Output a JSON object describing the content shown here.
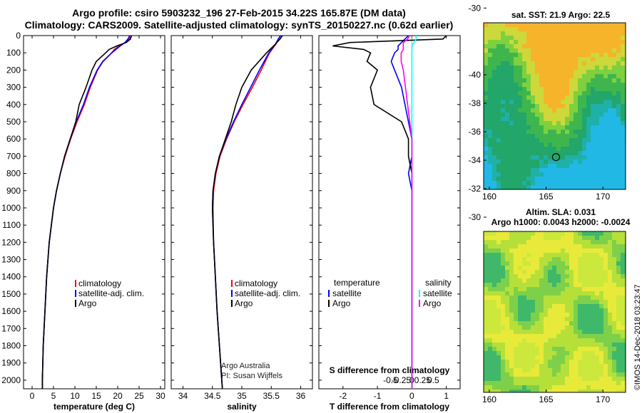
{
  "header": {
    "title_line1": "Argo profile: csiro 5903232_196 27-Feb-2015 34.22S 165.87E (DM data)",
    "title_line2": "Climatology: CARS2009. Satellite-adjusted climatology: synTS_20150227.nc (0.62d earlier)"
  },
  "colors": {
    "climatology": "#ff0000",
    "satellite": "#0000ff",
    "argo": "#000000",
    "sal_satellite": "#00ffff",
    "sal_argo": "#ff00ff"
  },
  "depth_axis": {
    "ticks": [
      "0",
      "100",
      "200",
      "300",
      "400",
      "500",
      "600",
      "700",
      "800",
      "900",
      "1000",
      "1100",
      "1200",
      "1300",
      "1400",
      "1500",
      "1600",
      "1700",
      "1800",
      "1900",
      "2000"
    ],
    "ylim": [
      2050,
      0
    ]
  },
  "chart_data": [
    {
      "type": "line",
      "id": "temperature",
      "xlabel": "temperature (deg C)",
      "xlim": [
        -2,
        31
      ],
      "xticks": [
        "0",
        "5",
        "10",
        "15",
        "20",
        "25",
        "30"
      ],
      "legend": {
        "climatology": "climatology",
        "satellite": "satellite-adj. clim.",
        "argo": "Argo"
      },
      "depth": [
        0,
        20,
        40,
        60,
        80,
        100,
        150,
        200,
        300,
        400,
        500,
        600,
        700,
        800,
        900,
        1000,
        1200,
        1400,
        1600,
        1800,
        2000,
        2050
      ],
      "series": [
        {
          "name": "climatology",
          "color": "#ff0000",
          "values": [
            23.0,
            22.6,
            21.8,
            20.3,
            19.2,
            18.6,
            16.6,
            15.3,
            13.6,
            12.2,
            10.5,
            9.0,
            7.7,
            6.6,
            5.7,
            5.0,
            4.0,
            3.4,
            3.0,
            2.6,
            2.4,
            2.4
          ]
        },
        {
          "name": "satellite-adj. clim.",
          "color": "#0000ff",
          "values": [
            22.8,
            22.4,
            21.7,
            20.6,
            19.6,
            18.6,
            16.5,
            15.2,
            13.4,
            12.0,
            10.3,
            8.9,
            7.6,
            6.6,
            5.7,
            5.0,
            4.0,
            3.4,
            3.0,
            2.6,
            2.4,
            2.4
          ]
        },
        {
          "name": "Argo",
          "color": "#000000",
          "values": [
            23.2,
            23.0,
            22.0,
            19.8,
            18.0,
            17.2,
            15.0,
            14.0,
            12.6,
            11.0,
            10.2,
            8.9,
            7.6,
            6.6,
            5.7,
            5.0,
            4.0,
            3.4,
            3.0,
            2.6,
            2.4,
            2.4
          ]
        }
      ]
    },
    {
      "type": "line",
      "id": "salinity",
      "xlabel": "salinity",
      "xlim": [
        33.8,
        36.2
      ],
      "xticks": [
        "34",
        "34.5",
        "35",
        "35.5",
        "36"
      ],
      "legend": {
        "climatology": "climatology",
        "satellite": "satellite-adj. clim.",
        "argo": "Argo"
      },
      "depth": [
        0,
        20,
        50,
        100,
        200,
        300,
        400,
        500,
        600,
        700,
        800,
        900,
        1000,
        1200,
        1400,
        1600,
        1800,
        2000,
        2050
      ],
      "series": [
        {
          "name": "climatology",
          "color": "#ff0000",
          "values": [
            35.66,
            35.62,
            35.58,
            35.47,
            35.33,
            35.18,
            35.02,
            34.87,
            34.74,
            34.63,
            34.56,
            34.52,
            34.51,
            34.52,
            34.55,
            34.58,
            34.62,
            34.66,
            34.67
          ]
        },
        {
          "name": "satellite-adj. clim.",
          "color": "#0000ff",
          "values": [
            35.66,
            35.62,
            35.57,
            35.46,
            35.3,
            35.15,
            35.0,
            34.86,
            34.73,
            34.62,
            34.55,
            34.51,
            34.5,
            34.52,
            34.55,
            34.58,
            34.62,
            34.66,
            34.67
          ]
        },
        {
          "name": "Argo",
          "color": "#000000",
          "values": [
            35.69,
            35.65,
            35.57,
            35.42,
            35.16,
            35.0,
            34.9,
            34.82,
            34.72,
            34.62,
            34.55,
            34.51,
            34.5,
            34.52,
            34.55,
            34.58,
            34.62,
            34.66,
            34.67
          ]
        }
      ]
    },
    {
      "type": "line",
      "id": "difference",
      "xlabel": "T difference from climatology",
      "xlabel_top": "S difference from climatology",
      "xlim": [
        -2.7,
        1.4
      ],
      "xticks": [
        "-2",
        "-1",
        "0",
        "1"
      ],
      "xticks_s": [
        "-0.5",
        "-0.25",
        "0",
        "0.25",
        "0.5"
      ],
      "legend": {
        "temperature_head": "temperature",
        "satellite": "satellite",
        "argo": "Argo",
        "salinity_head": "salinity",
        "s_satellite": "satellite",
        "s_argo": "Argo"
      },
      "depth": [
        0,
        20,
        40,
        60,
        80,
        100,
        150,
        200,
        300,
        400,
        500,
        600,
        700,
        800,
        900,
        1000,
        1200,
        1400,
        1600,
        1800,
        2000,
        2050
      ],
      "series": [
        {
          "name": "T satellite",
          "color": "#0000ff",
          "values": [
            -0.1,
            -0.2,
            -0.3,
            -0.4,
            -0.4,
            -0.5,
            -0.6,
            -0.5,
            -0.3,
            -0.2,
            -0.1,
            0.0,
            0.0,
            -0.1,
            0.0,
            0.0,
            0.0,
            0.0,
            0.0,
            0.0,
            0.0,
            0.0
          ]
        },
        {
          "name": "T Argo",
          "color": "#000000",
          "values": [
            1.0,
            0.9,
            -1.8,
            -2.3,
            -1.4,
            -1.2,
            -1.3,
            -1.0,
            -1.2,
            -1.1,
            -0.3,
            -0.1,
            -0.1,
            0.0,
            0.0,
            0.0,
            0.0,
            0.0,
            0.0,
            0.0,
            0.0,
            0.0
          ]
        },
        {
          "name": "S satellite",
          "color": "#00ffff",
          "values": [
            0.1,
            0.1,
            0.05,
            0.0,
            0.0,
            0.0,
            0.0,
            0.0,
            0.0,
            0.0,
            0.0,
            0.0,
            0.0,
            0.0,
            0.0,
            0.0,
            0.0,
            0.0,
            0.0,
            0.0,
            0.0,
            0.0
          ]
        },
        {
          "name": "S Argo",
          "color": "#ff00ff",
          "values": [
            -0.05,
            -0.1,
            -0.2,
            -0.2,
            -0.2,
            -0.25,
            -0.25,
            -0.2,
            -0.15,
            -0.1,
            -0.05,
            0.0,
            0.0,
            0.0,
            0.0,
            0.0,
            0.0,
            0.0,
            0.0,
            0.0,
            0.0,
            0.0
          ]
        }
      ]
    }
  ],
  "credits": {
    "line1": "Argo Australia",
    "line2": "PI: Susan Wijffels"
  },
  "maps": {
    "sst": {
      "title": "sat. SST: 21.9 Argo: 22.5"
    },
    "sla": {
      "title1": "Altim. SLA: 0.031",
      "title2": "Argo h1000: 0.0043 h2000: -0.0024"
    },
    "lat_ticks": [
      "-30",
      "-32",
      "-34",
      "-36",
      "-38",
      "-40"
    ],
    "lon_ticks": [
      "160",
      "165",
      "170"
    ],
    "profile_lat": -34.22,
    "profile_lon": 165.87
  },
  "footer": {
    "copyright": "©IMOS 14-Dec-2018 03:23:47"
  }
}
